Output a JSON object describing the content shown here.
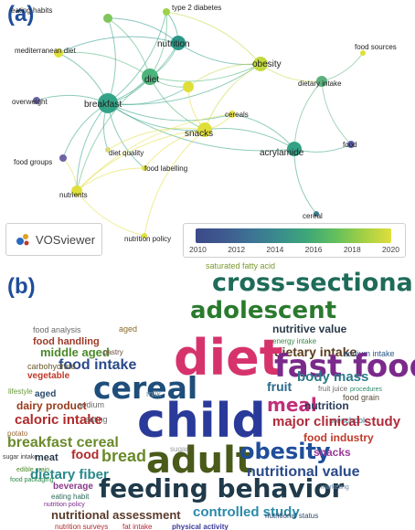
{
  "panel_a": {
    "label": "(a)",
    "nodes": [
      {
        "id": "eating_habits",
        "label": "eating habits",
        "color": "#7ec55b"
      },
      {
        "id": "type2",
        "label": "type 2 diabetes",
        "color": "#9fd04a"
      },
      {
        "id": "mediterranean",
        "label": "mediterranean diet",
        "color": "#e0df3a"
      },
      {
        "id": "nutrition",
        "label": "nutrition",
        "color": "#2a9889"
      },
      {
        "id": "food_sources",
        "label": "food sources",
        "color": "#e0df3a"
      },
      {
        "id": "diet",
        "label": "diet",
        "color": "#4cb47a"
      },
      {
        "id": "obesity",
        "label": "obesity",
        "color": "#c3d93e"
      },
      {
        "id": "yellow_mid",
        "label": "",
        "color": "#e0df3a"
      },
      {
        "id": "dietary_intake",
        "label": "dietary intake",
        "color": "#5cb07e"
      },
      {
        "id": "overweight",
        "label": "overweight",
        "color": "#6b64a8"
      },
      {
        "id": "breakfast",
        "label": "breakfast",
        "color": "#32a386"
      },
      {
        "id": "cereals",
        "label": "cereals",
        "color": "#e6e050"
      },
      {
        "id": "snacks",
        "label": "snacks",
        "color": "#e0df3a"
      },
      {
        "id": "acrylamide",
        "label": "acrylamide",
        "color": "#33a184"
      },
      {
        "id": "food",
        "label": "food",
        "color": "#5a5fa6"
      },
      {
        "id": "diet_quality",
        "label": "diet quality",
        "color": "#d8d97a"
      },
      {
        "id": "food_groups",
        "label": "food groups",
        "color": "#6b64a8"
      },
      {
        "id": "food_labelling",
        "label": "food labelling",
        "color": "#e0df3a"
      },
      {
        "id": "nutrients",
        "label": "nutrients",
        "color": "#e0df3a"
      },
      {
        "id": "cereal",
        "label": "cereal",
        "color": "#3f7e93"
      },
      {
        "id": "nutrition_policy",
        "label": "nutrition policy",
        "color": "#e0df3a"
      }
    ],
    "edges": [
      [
        "breakfast",
        "diet"
      ],
      [
        "breakfast",
        "nutrition"
      ],
      [
        "breakfast",
        "mediterranean"
      ],
      [
        "breakfast",
        "eating_habits"
      ],
      [
        "breakfast",
        "type2"
      ],
      [
        "breakfast",
        "obesity"
      ],
      [
        "breakfast",
        "overweight"
      ],
      [
        "breakfast",
        "snacks"
      ],
      [
        "breakfast",
        "cereals"
      ],
      [
        "breakfast",
        "food_groups"
      ],
      [
        "breakfast",
        "nutrients"
      ],
      [
        "breakfast",
        "diet_quality"
      ],
      [
        "breakfast",
        "yellow_mid"
      ],
      [
        "breakfast",
        "food_labelling"
      ],
      [
        "breakfast",
        "acrylamide"
      ],
      [
        "diet",
        "nutrition"
      ],
      [
        "diet",
        "obesity"
      ],
      [
        "diet",
        "eating_habits"
      ],
      [
        "diet",
        "mediterranean"
      ],
      [
        "diet",
        "snacks"
      ],
      [
        "diet",
        "nutrients"
      ],
      [
        "diet",
        "type2"
      ],
      [
        "diet",
        "yellow_mid"
      ],
      [
        "nutrition",
        "obesity"
      ],
      [
        "nutrition",
        "type2"
      ],
      [
        "nutrition",
        "eating_habits"
      ],
      [
        "nutrition",
        "mediterranean"
      ],
      [
        "obesity",
        "dietary_intake"
      ],
      [
        "obesity",
        "snacks"
      ],
      [
        "obesity",
        "type2"
      ],
      [
        "obesity",
        "yellow_mid"
      ],
      [
        "dietary_intake",
        "food_sources"
      ],
      [
        "dietary_intake",
        "acrylamide"
      ],
      [
        "dietary_intake",
        "food"
      ],
      [
        "acrylamide",
        "cereal"
      ],
      [
        "acrylamide",
        "food"
      ],
      [
        "acrylamide",
        "cereals"
      ],
      [
        "acrylamide",
        "snacks"
      ],
      [
        "snacks",
        "cereals"
      ],
      [
        "snacks",
        "food_labelling"
      ],
      [
        "snacks",
        "nutrients"
      ],
      [
        "snacks",
        "diet_quality"
      ],
      [
        "snacks",
        "nutrition_policy"
      ],
      [
        "cereals",
        "nutrients"
      ],
      [
        "nutrients",
        "nutrition_policy"
      ],
      [
        "nutrients",
        "food_groups"
      ],
      [
        "food_labelling",
        "nutrients"
      ],
      [
        "yellow_mid",
        "snacks"
      ]
    ],
    "vosviewer": {
      "text": "VOSviewer"
    },
    "color_scale": {
      "ticks": [
        "2010",
        "2012",
        "2014",
        "2016",
        "2018",
        "2020"
      ]
    }
  },
  "panel_b": {
    "label": "(b)",
    "words": [
      {
        "t": "saturated fatty acid",
        "c": "#7a9a2e"
      },
      {
        "t": "cross-sectional studies",
        "c": "#1f6b5a"
      },
      {
        "t": "adolescent",
        "c": "#2a7a2e"
      },
      {
        "t": "food analysis",
        "c": "#6a6a6a"
      },
      {
        "t": "aged",
        "c": "#8a6a2a"
      },
      {
        "t": "nutritive value",
        "c": "#2a3a4a"
      },
      {
        "t": "food handling",
        "c": "#a03a2a"
      },
      {
        "t": "energy intake",
        "c": "#3a8a4a"
      },
      {
        "t": "middle aged",
        "c": "#4a8a2a"
      },
      {
        "t": "pastry",
        "c": "#6a4a3a"
      },
      {
        "t": "dietary intake",
        "c": "#5a3a1a"
      },
      {
        "t": "sodium intake",
        "c": "#2a5a8a"
      },
      {
        "t": "food intake",
        "c": "#2a4a8a"
      },
      {
        "t": "diet",
        "c": "#d6336c"
      },
      {
        "t": "fast food",
        "c": "#7a2a8a"
      },
      {
        "t": "carbohydrate",
        "c": "#6a5a2a"
      },
      {
        "t": "vegetable",
        "c": "#c03a2a"
      },
      {
        "t": "cereal",
        "c": "#1f4e7a"
      },
      {
        "t": "fruit juice",
        "c": "#6a6a6a"
      },
      {
        "t": "body mass",
        "c": "#2a7a8a"
      },
      {
        "t": "fruit",
        "c": "#2a6a8a"
      },
      {
        "t": "food grain",
        "c": "#5a4a3a"
      },
      {
        "t": "lifestyle",
        "c": "#6a9a3a"
      },
      {
        "t": "aged",
        "c": "#2a4a6a"
      },
      {
        "t": "milk",
        "c": "#7a9aaa"
      },
      {
        "t": "procedures",
        "c": "#2a8a6a"
      },
      {
        "t": "dairy product",
        "c": "#9a3a1a"
      },
      {
        "t": "sodium",
        "c": "#6a6a6a"
      },
      {
        "t": "meal",
        "c": "#c0307a"
      },
      {
        "t": "nutrition",
        "c": "#2a3a5a"
      },
      {
        "t": "caloric intake",
        "c": "#b02a2a"
      },
      {
        "t": "child",
        "c": "#2a3a9a"
      },
      {
        "t": "preschool",
        "c": "#2a7a8a"
      },
      {
        "t": "eating",
        "c": "#6a6a6a"
      },
      {
        "t": "major clinical study",
        "c": "#b02a3a"
      },
      {
        "t": "potato",
        "c": "#9a6a3a"
      },
      {
        "t": "breakfast cereal",
        "c": "#6a8a2a"
      },
      {
        "t": "sugar intake",
        "c": "#3a3a3a"
      },
      {
        "t": "sugar",
        "c": "#9a9a9a"
      },
      {
        "t": "food industry",
        "c": "#c03a2a"
      },
      {
        "t": "meat",
        "c": "#2a3a4a"
      },
      {
        "t": "food",
        "c": "#b02a2a"
      },
      {
        "t": "bread",
        "c": "#6a8a2a"
      },
      {
        "t": "adult",
        "c": "#4a5a1a"
      },
      {
        "t": "obesity",
        "c": "#1f4e9a"
      },
      {
        "t": "snacks",
        "c": "#9a3a9a"
      },
      {
        "t": "edible grain",
        "c": "#4a8a2a"
      },
      {
        "t": "dietary fiber",
        "c": "#2a8a8a"
      },
      {
        "t": "nutritional value",
        "c": "#2a4a8a"
      },
      {
        "t": "food packaging",
        "c": "#2a8a4a"
      },
      {
        "t": "beverage",
        "c": "#8a3a8a"
      },
      {
        "t": "feeding behavior",
        "c": "#1f3a4a"
      },
      {
        "t": "marketing",
        "c": "#6a8aaa"
      },
      {
        "t": "eating habit",
        "c": "#2a6a5a"
      },
      {
        "t": "nutrition policy",
        "c": "#7a2a8a"
      },
      {
        "t": "nutritional assessment",
        "c": "#5a3a2a"
      },
      {
        "t": "controlled study",
        "c": "#2a8aaa"
      },
      {
        "t": "nutritional status",
        "c": "#2a4a6a"
      },
      {
        "t": "nutrition surveys",
        "c": "#b02a2a"
      },
      {
        "t": "fat intake",
        "c": "#b02a3a"
      },
      {
        "t": "physical activity",
        "c": "#3a3a9a"
      }
    ]
  }
}
